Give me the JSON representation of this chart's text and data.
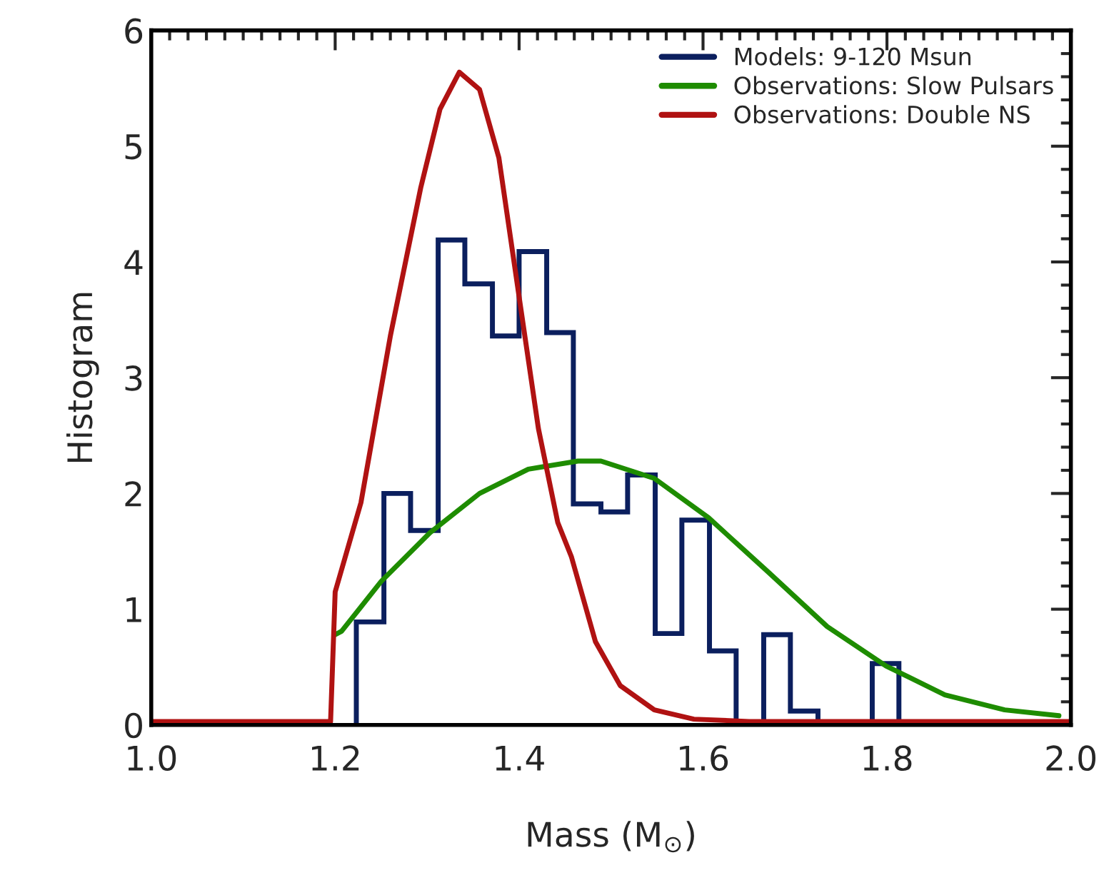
{
  "chart_data": {
    "type": "histogram",
    "xlabel": "Mass (M$_{⊙}$)",
    "ylabel": "Histogram",
    "bins": [
      1.223,
      1.253,
      1.282,
      1.312,
      1.341,
      1.371,
      1.4,
      1.43,
      1.459,
      1.489,
      1.518,
      1.548,
      1.577,
      1.607,
      1.636,
      1.666,
      1.695,
      1.725,
      1.754,
      1.784,
      1.813
    ],
    "series": [
      {
        "name": "Models: 9-120 Msun",
        "color": "#0b1f5e",
        "values": [
          0.89,
          2.0,
          1.68,
          4.19,
          3.81,
          3.36,
          4.09,
          3.39,
          1.91,
          1.84,
          2.16,
          0.79,
          1.77,
          0.64,
          0,
          0.78,
          0.12,
          0,
          0,
          0.53
        ]
      },
      {
        "name": "Observations: Slow Pulsars",
        "color": "#1e8c00",
        "type": "line",
        "x": [
          1.2,
          1.207,
          1.25,
          1.303,
          1.357,
          1.41,
          1.464,
          1.489,
          1.547,
          1.606,
          1.671,
          1.735,
          1.799,
          1.863,
          1.928,
          1.987
        ],
        "values": [
          0.78,
          0.81,
          1.24,
          1.66,
          2.0,
          2.21,
          2.28,
          2.28,
          2.13,
          1.79,
          1.32,
          0.85,
          0.51,
          0.26,
          0.13,
          0.08
        ]
      },
      {
        "name": "Observations: Double NS",
        "color": "#b01212",
        "type": "line",
        "x": [
          1.0,
          1.195,
          1.2,
          1.228,
          1.26,
          1.293,
          1.314,
          1.335,
          1.357,
          1.378,
          1.4,
          1.421,
          1.442,
          1.457,
          1.483,
          1.51,
          1.547,
          1.59,
          1.65,
          2.0
        ],
        "values": [
          0.03,
          0.03,
          1.15,
          1.92,
          3.36,
          4.64,
          5.32,
          5.64,
          5.49,
          4.9,
          3.7,
          2.56,
          1.75,
          1.45,
          0.72,
          0.34,
          0.13,
          0.05,
          0.03,
          0.03
        ]
      }
    ],
    "xlim": [
      1.0,
      2.0
    ],
    "xticks": [
      {
        "value": 1.0,
        "label": "1.0"
      },
      1.2,
      1.4,
      1.6,
      1.8,
      {
        "value": 2.0,
        "label": "2.0"
      }
    ],
    "ylim": [
      0,
      6
    ],
    "yticks": [
      0,
      1,
      2,
      3,
      4,
      5,
      6
    ],
    "grid": false,
    "legend": "top right"
  }
}
